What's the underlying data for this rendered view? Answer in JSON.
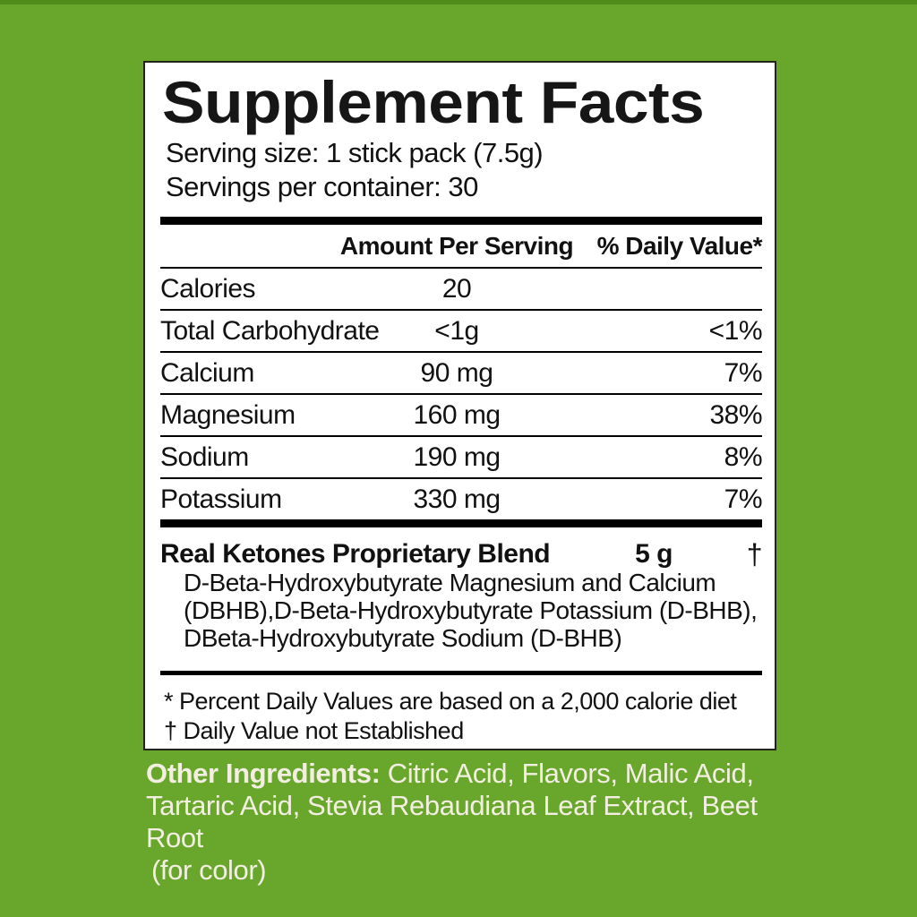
{
  "label": {
    "title": "Supplement Facts",
    "serving_size": "Serving size: 1 stick pack (7.5g)",
    "servings_per_container": "Servings per container: 30",
    "header": {
      "amount": "Amount Per Serving",
      "daily_value": "% Daily Value*"
    },
    "rows": [
      {
        "name": "Calories",
        "amount": "20",
        "dv": ""
      },
      {
        "name": "Total Carbohydrate",
        "amount": "<1g",
        "dv": "<1%"
      },
      {
        "name": "Calcium",
        "amount": "90 mg",
        "dv": "7%"
      },
      {
        "name": "Magnesium",
        "amount": "160 mg",
        "dv": "38%"
      },
      {
        "name": "Sodium",
        "amount": "190 mg",
        "dv": "8%"
      },
      {
        "name": "Potassium",
        "amount": "330 mg",
        "dv": "7%"
      }
    ],
    "blend": {
      "name": "Real Ketones Proprietary Blend",
      "amount": "5 g",
      "dv": "†",
      "description_line1": "D-Beta-Hydroxybutyrate Magnesium and Calcium",
      "description_line2": "(DBHB),D-Beta-Hydroxybutyrate Potassium (D-BHB),",
      "description_line3": "DBeta-Hydroxybutyrate Sodium (D-BHB)"
    },
    "footnote_dv": "* Percent Daily Values are based on a 2,000 calorie diet",
    "footnote_dagger": "† Daily Value not Established"
  },
  "other_ingredients": {
    "label": "Other Ingredients:",
    "line1_rest": " Citric Acid, Flavors, Malic Acid,",
    "line2": "Tartaric Acid, Stevia Rebaudiana Leaf Extract, Beet Root",
    "line3": "(for color)"
  },
  "colors": {
    "background_green": "#69a72c",
    "top_edge_green": "#4f8c1b",
    "panel_white": "#ffffff",
    "label_text": "#111111",
    "ingredients_text": "#f2efe2"
  }
}
